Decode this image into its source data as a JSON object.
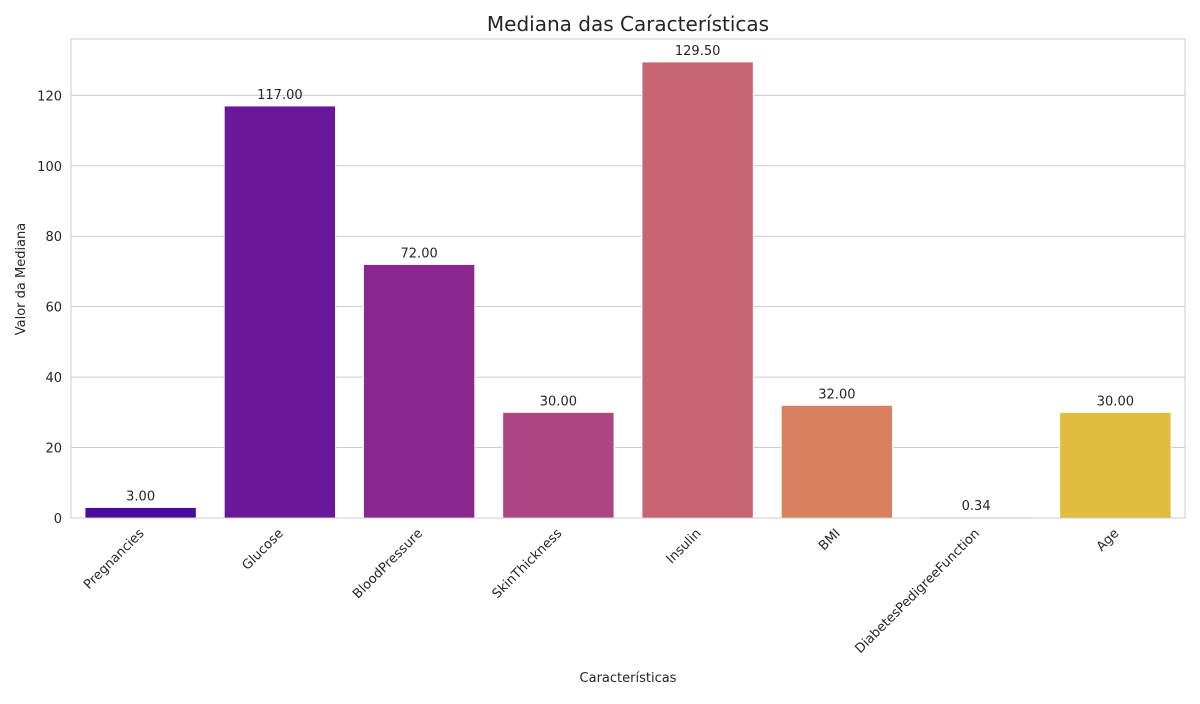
{
  "chart_data": {
    "type": "bar",
    "title": "Mediana das Características",
    "xlabel": "Características",
    "ylabel": "Valor da Mediana",
    "categories": [
      "Pregnancies",
      "Glucose",
      "BloodPressure",
      "SkinThickness",
      "Insulin",
      "BMI",
      "DiabetesPedigreeFunction",
      "Age"
    ],
    "values": [
      3.0,
      117.0,
      72.0,
      30.0,
      129.5,
      32.0,
      0.34,
      30.0
    ],
    "value_labels": [
      "3.00",
      "117.00",
      "72.00",
      "30.00",
      "129.50",
      "32.00",
      "0.34",
      "30.00"
    ],
    "bar_colors": [
      "#4a0c9c",
      "#6a179a",
      "#8a268d",
      "#ab4682",
      "#c76670",
      "#d9805f",
      "#f0c88a",
      "#e1bd3d"
    ],
    "ylim": [
      0,
      136.0
    ],
    "yticks": [
      0,
      20,
      40,
      60,
      80,
      100,
      120
    ],
    "grid": true,
    "grid_axis": "y"
  }
}
